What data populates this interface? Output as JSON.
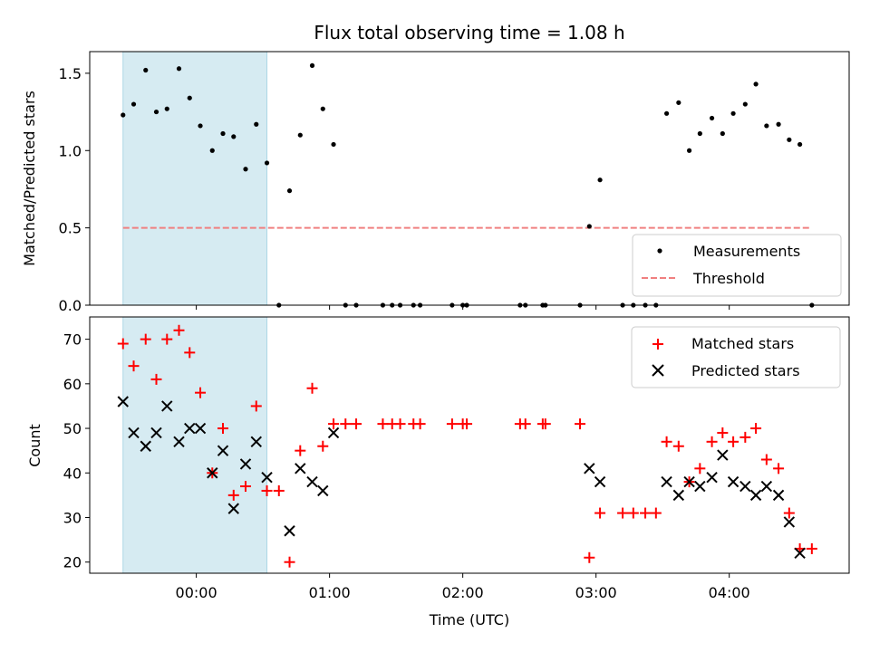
{
  "chart_data": [
    {
      "type": "scatter",
      "title": "Flux total observing time = 1.08 h",
      "xlabel": "",
      "ylabel": "Matched/Predicted stars",
      "xlim": [
        -0.8,
        4.9
      ],
      "ylim": [
        0,
        1.64
      ],
      "yticks": [
        0,
        0.5,
        1.0,
        1.5
      ],
      "ytick_labels": [
        "0.0",
        "0.5",
        "1.0",
        "1.5"
      ],
      "highlight_span": [
        -0.55,
        0.53
      ],
      "threshold": {
        "value": 0.5,
        "x_range": [
          -0.55,
          4.6
        ],
        "color": "#f08080"
      },
      "legend": {
        "loc": "lower right",
        "entries": [
          "Measurements",
          "Threshold"
        ]
      },
      "series": [
        {
          "name": "Measurements",
          "marker": "dot",
          "color": "#000000",
          "points": [
            [
              -0.55,
              1.23
            ],
            [
              -0.47,
              1.3
            ],
            [
              -0.38,
              1.52
            ],
            [
              -0.3,
              1.25
            ],
            [
              -0.22,
              1.27
            ],
            [
              -0.13,
              1.53
            ],
            [
              -0.05,
              1.34
            ],
            [
              0.03,
              1.16
            ],
            [
              0.12,
              1.0
            ],
            [
              0.2,
              1.11
            ],
            [
              0.28,
              1.09
            ],
            [
              0.37,
              0.88
            ],
            [
              0.45,
              1.17
            ],
            [
              0.53,
              0.92
            ],
            [
              0.62,
              0.0
            ],
            [
              0.7,
              0.74
            ],
            [
              0.78,
              1.1
            ],
            [
              0.87,
              1.55
            ],
            [
              0.95,
              1.27
            ],
            [
              1.03,
              1.04
            ],
            [
              1.12,
              0.0
            ],
            [
              1.2,
              0.0
            ],
            [
              1.4,
              0.0
            ],
            [
              1.47,
              0.0
            ],
            [
              1.53,
              0.0
            ],
            [
              1.63,
              0.0
            ],
            [
              1.68,
              0.0
            ],
            [
              1.92,
              0.0
            ],
            [
              2.0,
              0.0
            ],
            [
              2.03,
              0.0
            ],
            [
              2.43,
              0.0
            ],
            [
              2.47,
              0.0
            ],
            [
              2.6,
              0.0
            ],
            [
              2.62,
              0.0
            ],
            [
              2.88,
              0.0
            ],
            [
              2.95,
              0.51
            ],
            [
              3.03,
              0.81
            ],
            [
              3.2,
              0.0
            ],
            [
              3.28,
              0.0
            ],
            [
              3.37,
              0.0
            ],
            [
              3.45,
              0.0
            ],
            [
              3.53,
              1.24
            ],
            [
              3.62,
              1.31
            ],
            [
              3.7,
              1.0
            ],
            [
              3.78,
              1.11
            ],
            [
              3.87,
              1.21
            ],
            [
              3.95,
              1.11
            ],
            [
              4.03,
              1.24
            ],
            [
              4.12,
              1.3
            ],
            [
              4.2,
              1.43
            ],
            [
              4.28,
              1.16
            ],
            [
              4.37,
              1.17
            ],
            [
              4.45,
              1.07
            ],
            [
              4.53,
              1.04
            ],
            [
              4.62,
              0.0
            ]
          ]
        }
      ]
    },
    {
      "type": "scatter",
      "title": "",
      "xlabel": "Time (UTC)",
      "ylabel": "Count",
      "xlim": [
        -0.8,
        4.9
      ],
      "ylim": [
        17.5,
        75
      ],
      "yticks": [
        20,
        30,
        40,
        50,
        60,
        70
      ],
      "ytick_labels": [
        "20",
        "30",
        "40",
        "50",
        "60",
        "70"
      ],
      "xticks": [
        0,
        1,
        2,
        3,
        4
      ],
      "xtick_labels": [
        "00:00",
        "01:00",
        "02:00",
        "03:00",
        "04:00"
      ],
      "highlight_span": [
        -0.55,
        0.53
      ],
      "legend": {
        "loc": "upper right",
        "entries": [
          "Matched stars",
          "Predicted stars"
        ]
      },
      "series": [
        {
          "name": "Matched stars",
          "marker": "plus",
          "color": "#ff0000",
          "points": [
            [
              -0.55,
              69
            ],
            [
              -0.47,
              64
            ],
            [
              -0.38,
              70
            ],
            [
              -0.3,
              61
            ],
            [
              -0.22,
              70
            ],
            [
              -0.13,
              72
            ],
            [
              -0.05,
              67
            ],
            [
              0.03,
              58
            ],
            [
              0.12,
              40
            ],
            [
              0.2,
              50
            ],
            [
              0.28,
              35
            ],
            [
              0.37,
              37
            ],
            [
              0.45,
              55
            ],
            [
              0.53,
              36
            ],
            [
              0.62,
              36
            ],
            [
              0.7,
              20
            ],
            [
              0.78,
              45
            ],
            [
              0.87,
              59
            ],
            [
              0.95,
              46
            ],
            [
              1.03,
              51
            ],
            [
              1.12,
              51
            ],
            [
              1.2,
              51
            ],
            [
              1.4,
              51
            ],
            [
              1.47,
              51
            ],
            [
              1.53,
              51
            ],
            [
              1.63,
              51
            ],
            [
              1.68,
              51
            ],
            [
              1.92,
              51
            ],
            [
              2.0,
              51
            ],
            [
              2.03,
              51
            ],
            [
              2.43,
              51
            ],
            [
              2.47,
              51
            ],
            [
              2.6,
              51
            ],
            [
              2.62,
              51
            ],
            [
              2.88,
              51
            ],
            [
              2.95,
              21
            ],
            [
              3.03,
              31
            ],
            [
              3.2,
              31
            ],
            [
              3.28,
              31
            ],
            [
              3.37,
              31
            ],
            [
              3.45,
              31
            ],
            [
              3.53,
              47
            ],
            [
              3.62,
              46
            ],
            [
              3.7,
              38
            ],
            [
              3.78,
              41
            ],
            [
              3.87,
              47
            ],
            [
              3.95,
              49
            ],
            [
              4.03,
              47
            ],
            [
              4.12,
              48
            ],
            [
              4.2,
              50
            ],
            [
              4.28,
              43
            ],
            [
              4.37,
              41
            ],
            [
              4.45,
              31
            ],
            [
              4.53,
              23
            ],
            [
              4.62,
              23
            ]
          ]
        },
        {
          "name": "Predicted stars",
          "marker": "x",
          "color": "#000000",
          "points": [
            [
              -0.55,
              56
            ],
            [
              -0.47,
              49
            ],
            [
              -0.38,
              46
            ],
            [
              -0.3,
              49
            ],
            [
              -0.22,
              55
            ],
            [
              -0.13,
              47
            ],
            [
              -0.05,
              50
            ],
            [
              0.03,
              50
            ],
            [
              0.12,
              40
            ],
            [
              0.2,
              45
            ],
            [
              0.28,
              32
            ],
            [
              0.37,
              42
            ],
            [
              0.45,
              47
            ],
            [
              0.53,
              39
            ],
            [
              0.7,
              27
            ],
            [
              0.78,
              41
            ],
            [
              0.87,
              38
            ],
            [
              0.95,
              36
            ],
            [
              1.03,
              49
            ],
            [
              2.95,
              41
            ],
            [
              3.03,
              38
            ],
            [
              3.53,
              38
            ],
            [
              3.62,
              35
            ],
            [
              3.7,
              38
            ],
            [
              3.78,
              37
            ],
            [
              3.87,
              39
            ],
            [
              3.95,
              44
            ],
            [
              4.03,
              38
            ],
            [
              4.12,
              37
            ],
            [
              4.2,
              35
            ],
            [
              4.28,
              37
            ],
            [
              4.37,
              35
            ],
            [
              4.45,
              29
            ],
            [
              4.53,
              22
            ]
          ]
        }
      ]
    }
  ]
}
